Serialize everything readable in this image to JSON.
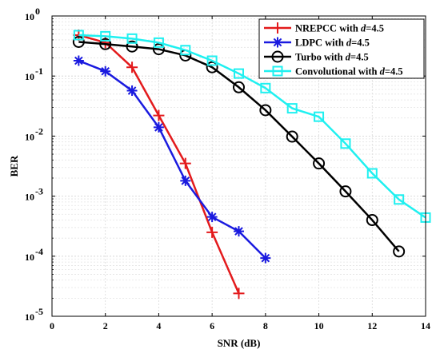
{
  "chart_data": {
    "type": "line",
    "xlabel": "SNR (dB)",
    "ylabel": "BER",
    "xlim": [
      0,
      14
    ],
    "ylim": [
      1e-05,
      1
    ],
    "yscale": "log",
    "xticks": [
      "0",
      "2",
      "4",
      "6",
      "8",
      "10",
      "12",
      "14"
    ],
    "yticks": [
      {
        "base": "10",
        "exp": "-5"
      },
      {
        "base": "10",
        "exp": "-4"
      },
      {
        "base": "10",
        "exp": "-3"
      },
      {
        "base": "10",
        "exp": "-2"
      },
      {
        "base": "10",
        "exp": "-1"
      },
      {
        "base": "10",
        "exp": "0"
      }
    ],
    "grid": true,
    "legend_position": "top-right",
    "series": [
      {
        "name": "NREPCC with d=4.5",
        "name_prefix": "NREPCC with ",
        "name_var": "d",
        "name_suffix": "=4.5",
        "color": "#e31a1c",
        "marker": "plus",
        "x": [
          1,
          2,
          3,
          4,
          5,
          6,
          7
        ],
        "y": [
          0.48,
          0.36,
          0.14,
          0.022,
          0.0035,
          0.00025,
          2.4e-05
        ]
      },
      {
        "name": "LDPC with d=4.5",
        "name_prefix": "LDPC with ",
        "name_var": "d",
        "name_suffix": "=4.5",
        "color": "#1a1adf",
        "marker": "asterisk",
        "x": [
          1,
          2,
          3,
          4,
          5,
          6,
          7,
          8
        ],
        "y": [
          0.18,
          0.12,
          0.057,
          0.014,
          0.0018,
          0.00045,
          0.00026,
          9.3e-05
        ]
      },
      {
        "name": "Turbo with d=4.5",
        "name_prefix": "Turbo with ",
        "name_var": "d",
        "name_suffix": "=4.5",
        "color": "#000000",
        "marker": "circle",
        "x": [
          1,
          2,
          3,
          4,
          5,
          6,
          7,
          8,
          9,
          10,
          11,
          12,
          13
        ],
        "y": [
          0.37,
          0.34,
          0.31,
          0.28,
          0.22,
          0.14,
          0.065,
          0.027,
          0.0098,
          0.0035,
          0.0012,
          0.0004,
          0.00012
        ]
      },
      {
        "name": "Convolutional with d=4.5",
        "name_prefix": "Convolutional with ",
        "name_var": "d",
        "name_suffix": "=4.5",
        "color": "#1ff0f0",
        "marker": "square",
        "x": [
          1,
          2,
          3,
          4,
          5,
          6,
          7,
          8,
          9,
          10,
          11,
          12,
          13,
          14
        ],
        "y": [
          0.48,
          0.46,
          0.42,
          0.36,
          0.27,
          0.18,
          0.11,
          0.063,
          0.029,
          0.021,
          0.0075,
          0.0024,
          0.00088,
          0.00044
        ]
      }
    ]
  }
}
